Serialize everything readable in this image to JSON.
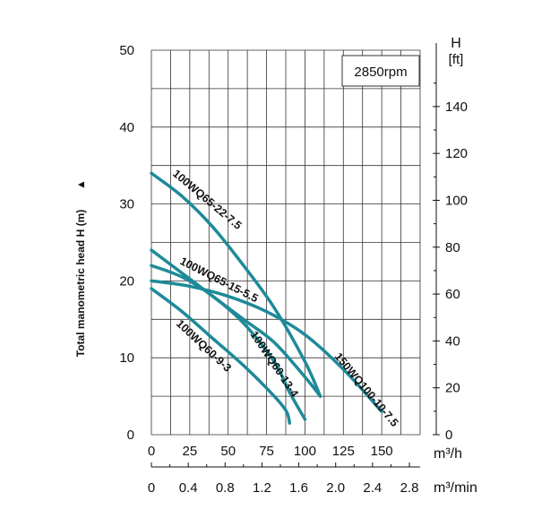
{
  "chart_data": {
    "type": "line",
    "title": "",
    "rpm_label": "2850rpm",
    "ylabel": "Total manometric head H (m)",
    "ylabel_arrow": "▲",
    "ylim": [
      0,
      50
    ],
    "yticks": [
      "0",
      "10",
      "20",
      "30",
      "40",
      "50"
    ],
    "right_axis": {
      "label_top": "H",
      "label_unit": "[ft]",
      "ticks": [
        "0",
        "20",
        "40",
        "60",
        "80",
        "100",
        "120",
        "140"
      ]
    },
    "x_axis_m3h": {
      "unit": "m³/h",
      "xlim": [
        0,
        175
      ],
      "ticks": [
        "0",
        "25",
        "50",
        "75",
        "100",
        "125",
        "150"
      ]
    },
    "x_axis_m3min": {
      "unit": "m³/min",
      "ticks": [
        "0",
        "0.4",
        "0.8",
        "1.2",
        "1.6",
        "2.0",
        "2.4",
        "2.8"
      ]
    },
    "series": [
      {
        "name": "100WQ65-22-7.5",
        "x": [
          0,
          20,
          40,
          60,
          80,
          100,
          110
        ],
        "y": [
          34,
          31,
          27,
          22,
          16.5,
          9.5,
          5
        ]
      },
      {
        "name": "100WQ65-15-5.5",
        "x": [
          0,
          20,
          40,
          60,
          80,
          100,
          110
        ],
        "y": [
          24,
          21,
          18,
          15,
          12,
          7.5,
          5
        ]
      },
      {
        "name": "100WQ60-13-4",
        "x": [
          0,
          20,
          40,
          60,
          80,
          90,
          100
        ],
        "y": [
          22,
          20.5,
          18,
          14.5,
          9.5,
          5.5,
          2
        ]
      },
      {
        "name": "100WQ60-9-3",
        "x": [
          0,
          20,
          40,
          60,
          80,
          88,
          90
        ],
        "y": [
          19,
          16,
          12.5,
          9,
          5,
          3,
          1.5
        ]
      },
      {
        "name": "150WQ100-10-7.5",
        "x": [
          0,
          25,
          50,
          75,
          100,
          125,
          150
        ],
        "y": [
          20,
          19.3,
          18,
          16,
          13,
          8.5,
          3
        ]
      }
    ]
  }
}
